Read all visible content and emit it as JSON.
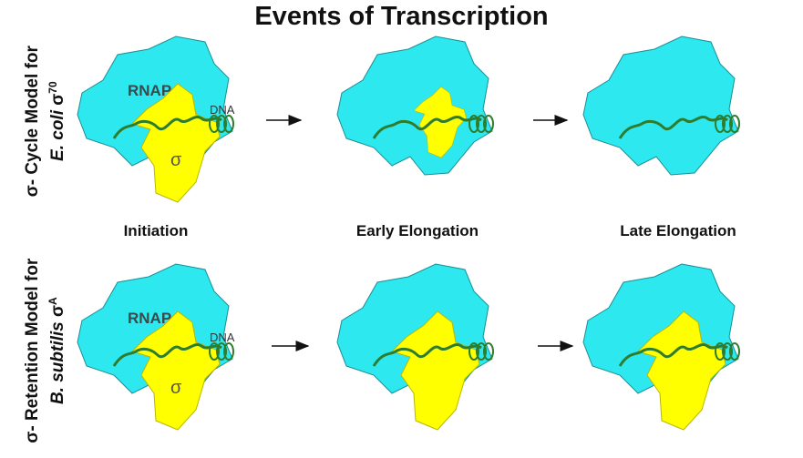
{
  "title": "Events of Transcription",
  "rows": [
    {
      "label_line1": "σ- Cycle Model for",
      "label_organism": "E. coli",
      "label_sigma": "σ",
      "label_sup": "70",
      "panels": [
        {
          "sigma_bound": 1.0
        },
        {
          "sigma_bound": 0.6
        },
        {
          "sigma_bound": 0.0
        }
      ]
    },
    {
      "label_line1": "σ- Retention Model for",
      "label_organism": "B. subtilis",
      "label_sigma": "σ",
      "label_sup": "A",
      "panels": [
        {
          "sigma_bound": 1.0
        },
        {
          "sigma_bound": 1.0
        },
        {
          "sigma_bound": 1.0
        }
      ]
    }
  ],
  "stages": [
    "Initiation",
    "Early Elongation",
    "Late Elongation"
  ],
  "molecule_labels": {
    "rnap": "RNAP",
    "dna": "DNA",
    "sigma": "σ"
  },
  "colors": {
    "rnap": "#2ee8f0",
    "sigma": "#ffff00",
    "dna": "#2e7d2e"
  }
}
